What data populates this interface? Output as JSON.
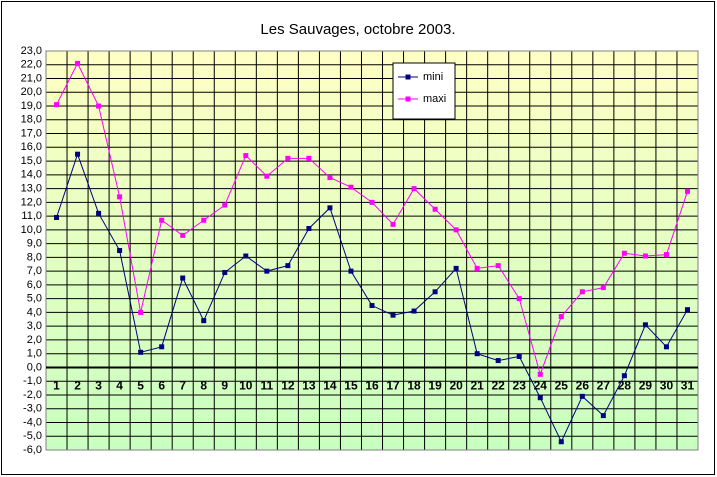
{
  "chart_data": {
    "type": "line",
    "title": "Les Sauvages, octobre 2003.",
    "categories": [
      "1",
      "2",
      "3",
      "4",
      "5",
      "6",
      "7",
      "8",
      "9",
      "10",
      "11",
      "12",
      "13",
      "14",
      "15",
      "16",
      "17",
      "18",
      "19",
      "20",
      "21",
      "22",
      "23",
      "24",
      "25",
      "26",
      "27",
      "28",
      "29",
      "30",
      "31"
    ],
    "series": [
      {
        "name": "mini",
        "color": "#000080",
        "values": [
          10.9,
          15.5,
          11.2,
          8.5,
          1.1,
          1.5,
          6.5,
          3.4,
          6.9,
          8.1,
          7.0,
          7.4,
          10.1,
          11.6,
          7.0,
          4.5,
          3.8,
          4.1,
          5.5,
          7.2,
          1.0,
          0.5,
          0.8,
          -2.2,
          -5.4,
          -2.1,
          -3.5,
          -0.6,
          3.1,
          1.5,
          4.2
        ]
      },
      {
        "name": "maxi",
        "color": "#ff00ff",
        "values": [
          19.1,
          22.1,
          19.0,
          12.4,
          4.0,
          10.7,
          9.6,
          10.7,
          11.8,
          15.4,
          13.9,
          15.2,
          15.2,
          13.8,
          13.1,
          12.0,
          10.4,
          13.0,
          11.5,
          10.0,
          7.2,
          7.4,
          5.0,
          -0.5,
          3.7,
          5.5,
          5.8,
          8.3,
          8.1,
          8.2,
          12.8
        ]
      }
    ],
    "ylim": [
      -6,
      23
    ],
    "yticks": [
      {
        "value": -6,
        "label": "-6,0"
      },
      {
        "value": -5,
        "label": "-5,0"
      },
      {
        "value": -4,
        "label": "-4,0"
      },
      {
        "value": -3,
        "label": "-3,0"
      },
      {
        "value": -2,
        "label": "-2,0"
      },
      {
        "value": -1,
        "label": "-1,0"
      },
      {
        "value": 0,
        "label": "0,0"
      },
      {
        "value": 1,
        "label": "1,0"
      },
      {
        "value": 2,
        "label": "2,0"
      },
      {
        "value": 3,
        "label": "3,0"
      },
      {
        "value": 4,
        "label": "4,0"
      },
      {
        "value": 5,
        "label": "5,0"
      },
      {
        "value": 6,
        "label": "6,0"
      },
      {
        "value": 7,
        "label": "7,0"
      },
      {
        "value": 8,
        "label": "8,0"
      },
      {
        "value": 9,
        "label": "9,0"
      },
      {
        "value": 10,
        "label": "10,0"
      },
      {
        "value": 11,
        "label": "11,0"
      },
      {
        "value": 12,
        "label": "12,0"
      },
      {
        "value": 13,
        "label": "13,0"
      },
      {
        "value": 14,
        "label": "14,0"
      },
      {
        "value": 15,
        "label": "15,0"
      },
      {
        "value": 16,
        "label": "16,0"
      },
      {
        "value": 17,
        "label": "17,0"
      },
      {
        "value": 18,
        "label": "18,0"
      },
      {
        "value": 19,
        "label": "19,0"
      },
      {
        "value": 20,
        "label": "20,0"
      },
      {
        "value": 21,
        "label": "21,0"
      },
      {
        "value": 22,
        "label": "22,0"
      },
      {
        "value": 23,
        "label": "23,0"
      }
    ],
    "grid": true,
    "legend": true
  }
}
